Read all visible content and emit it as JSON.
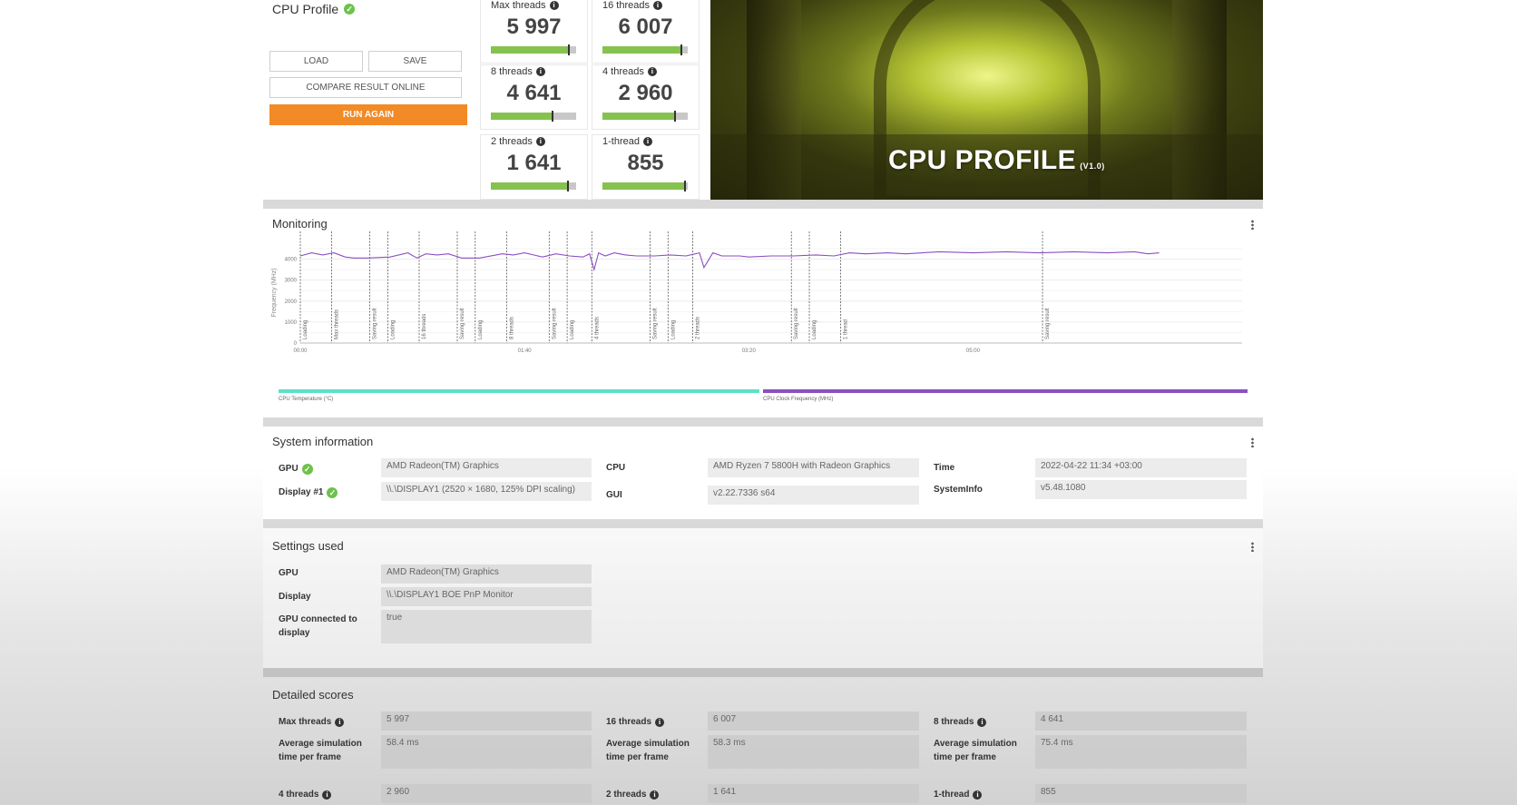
{
  "profile": {
    "title": "CPU Profile",
    "buttons": {
      "load": "LOAD",
      "save": "SAVE",
      "compare": "COMPARE RESULT ONLINE",
      "run_again": "RUN AGAIN"
    }
  },
  "scores": [
    {
      "label": "Max threads",
      "value": "5 997",
      "fill": 0.92
    },
    {
      "label": "16 threads",
      "value": "6 007",
      "fill": 0.93
    },
    {
      "label": "8 threads",
      "value": "4 641",
      "fill": 0.72
    },
    {
      "label": "4 threads",
      "value": "2 960",
      "fill": 0.85
    },
    {
      "label": "2 threads",
      "value": "1 641",
      "fill": 0.9
    },
    {
      "label": "1-thread",
      "value": "855",
      "fill": 0.97
    }
  ],
  "hero": {
    "title": "CPU PROFILE",
    "version": "(V1.0)"
  },
  "monitoring": {
    "title": "Monitoring",
    "legend": {
      "temp": "CPU Temperature (°C)",
      "clock": "CPU Clock Frequency (MHz)"
    },
    "colors": {
      "temp": "#5ee0c8",
      "clock": "#8a4fc1"
    }
  },
  "chart_data": {
    "type": "line",
    "ylabel": "Frequency (MHz)",
    "ylim": [
      0,
      4800
    ],
    "yticks": [
      "0",
      "1000",
      "2000",
      "3000",
      "4000"
    ],
    "xticks": [
      "00:00",
      "01:40",
      "03:20",
      "05:00"
    ],
    "x_range_seconds": [
      0,
      420
    ],
    "series": [
      {
        "name": "CPU Clock Frequency (MHz)",
        "x": [
          0,
          5,
          10,
          15,
          20,
          24,
          30,
          40,
          48,
          52,
          56,
          61,
          66,
          72,
          80,
          90,
          95,
          100,
          104,
          108,
          114,
          120,
          126,
          129,
          131,
          133,
          136,
          140,
          145,
          150,
          158,
          165,
          172,
          178,
          180,
          184,
          188,
          196,
          200,
          210,
          220,
          230,
          238,
          245,
          252,
          262,
          270,
          285,
          300,
          315,
          330,
          345,
          360,
          372,
          378,
          383
        ],
        "values": [
          4150,
          4300,
          4200,
          4300,
          4100,
          4050,
          4050,
          4100,
          4300,
          4050,
          4250,
          4200,
          4250,
          4050,
          4050,
          4250,
          4200,
          4300,
          4200,
          4100,
          4250,
          4150,
          4100,
          4250,
          3500,
          4300,
          4150,
          4300,
          4200,
          4150,
          4150,
          4200,
          4150,
          4300,
          3600,
          4300,
          4150,
          4150,
          4100,
          4150,
          4150,
          4200,
          4150,
          4300,
          4250,
          4300,
          4250,
          4350,
          4300,
          4350,
          4300,
          4350,
          4300,
          4350,
          4250,
          4300
        ]
      }
    ],
    "markers": [
      {
        "t": 0,
        "label": "Loading"
      },
      {
        "t": 14,
        "label": "Max threads"
      },
      {
        "t": 31,
        "label": "Saving result"
      },
      {
        "t": 39,
        "label": "Loading"
      },
      {
        "t": 53,
        "label": "16 threads"
      },
      {
        "t": 70,
        "label": "Saving result"
      },
      {
        "t": 78,
        "label": "Loading"
      },
      {
        "t": 92,
        "label": "8 threads"
      },
      {
        "t": 111,
        "label": "Saving result"
      },
      {
        "t": 119,
        "label": "Loading"
      },
      {
        "t": 130,
        "label": "4 threads"
      },
      {
        "t": 156,
        "label": "Saving result"
      },
      {
        "t": 164,
        "label": "Loading"
      },
      {
        "t": 175,
        "label": "2 threads"
      },
      {
        "t": 219,
        "label": "Saving result"
      },
      {
        "t": 227,
        "label": "Loading"
      },
      {
        "t": 241,
        "label": "1 thread"
      },
      {
        "t": 331,
        "label": "Saving result"
      }
    ]
  },
  "system_info": {
    "title": "System information",
    "gpu_label": "GPU",
    "gpu_value": "AMD Radeon(TM) Graphics",
    "display_label": "Display #1",
    "display_value": "\\\\.\\DISPLAY1 (2520 × 1680, 125% DPI scaling)",
    "cpu_label": "CPU",
    "cpu_value": "AMD Ryzen 7 5800H with Radeon Graphics",
    "gui_label": "GUI",
    "gui_value": "v2.22.7336 s64",
    "time_label": "Time",
    "time_value": "2022-04-22 11:34 +03:00",
    "sysinfo_label": "SystemInfo",
    "sysinfo_value": "v5.48.1080"
  },
  "settings": {
    "title": "Settings used",
    "gpu_label": "GPU",
    "gpu_value": "AMD Radeon(TM) Graphics",
    "display_label": "Display",
    "display_value": "\\\\.\\DISPLAY1 BOE PnP Monitor",
    "connected_label": "GPU connected to display",
    "connected_value": "true"
  },
  "detailed": {
    "title": "Detailed scores",
    "avg_label": "Average simulation time per frame",
    "max_label": "Max threads",
    "max_value": "5 997",
    "max_avg": "58.4 ms",
    "t16_label": "16 threads",
    "t16_value": "6 007",
    "t16_avg": "58.3 ms",
    "t8_label": "8 threads",
    "t8_value": "4 641",
    "t8_avg": "75.4 ms",
    "t4_label": "4 threads",
    "t4_value": "2 960",
    "t2_label": "2 threads",
    "t2_value": "1 641",
    "t1_label": "1-thread",
    "t1_value": "855"
  }
}
